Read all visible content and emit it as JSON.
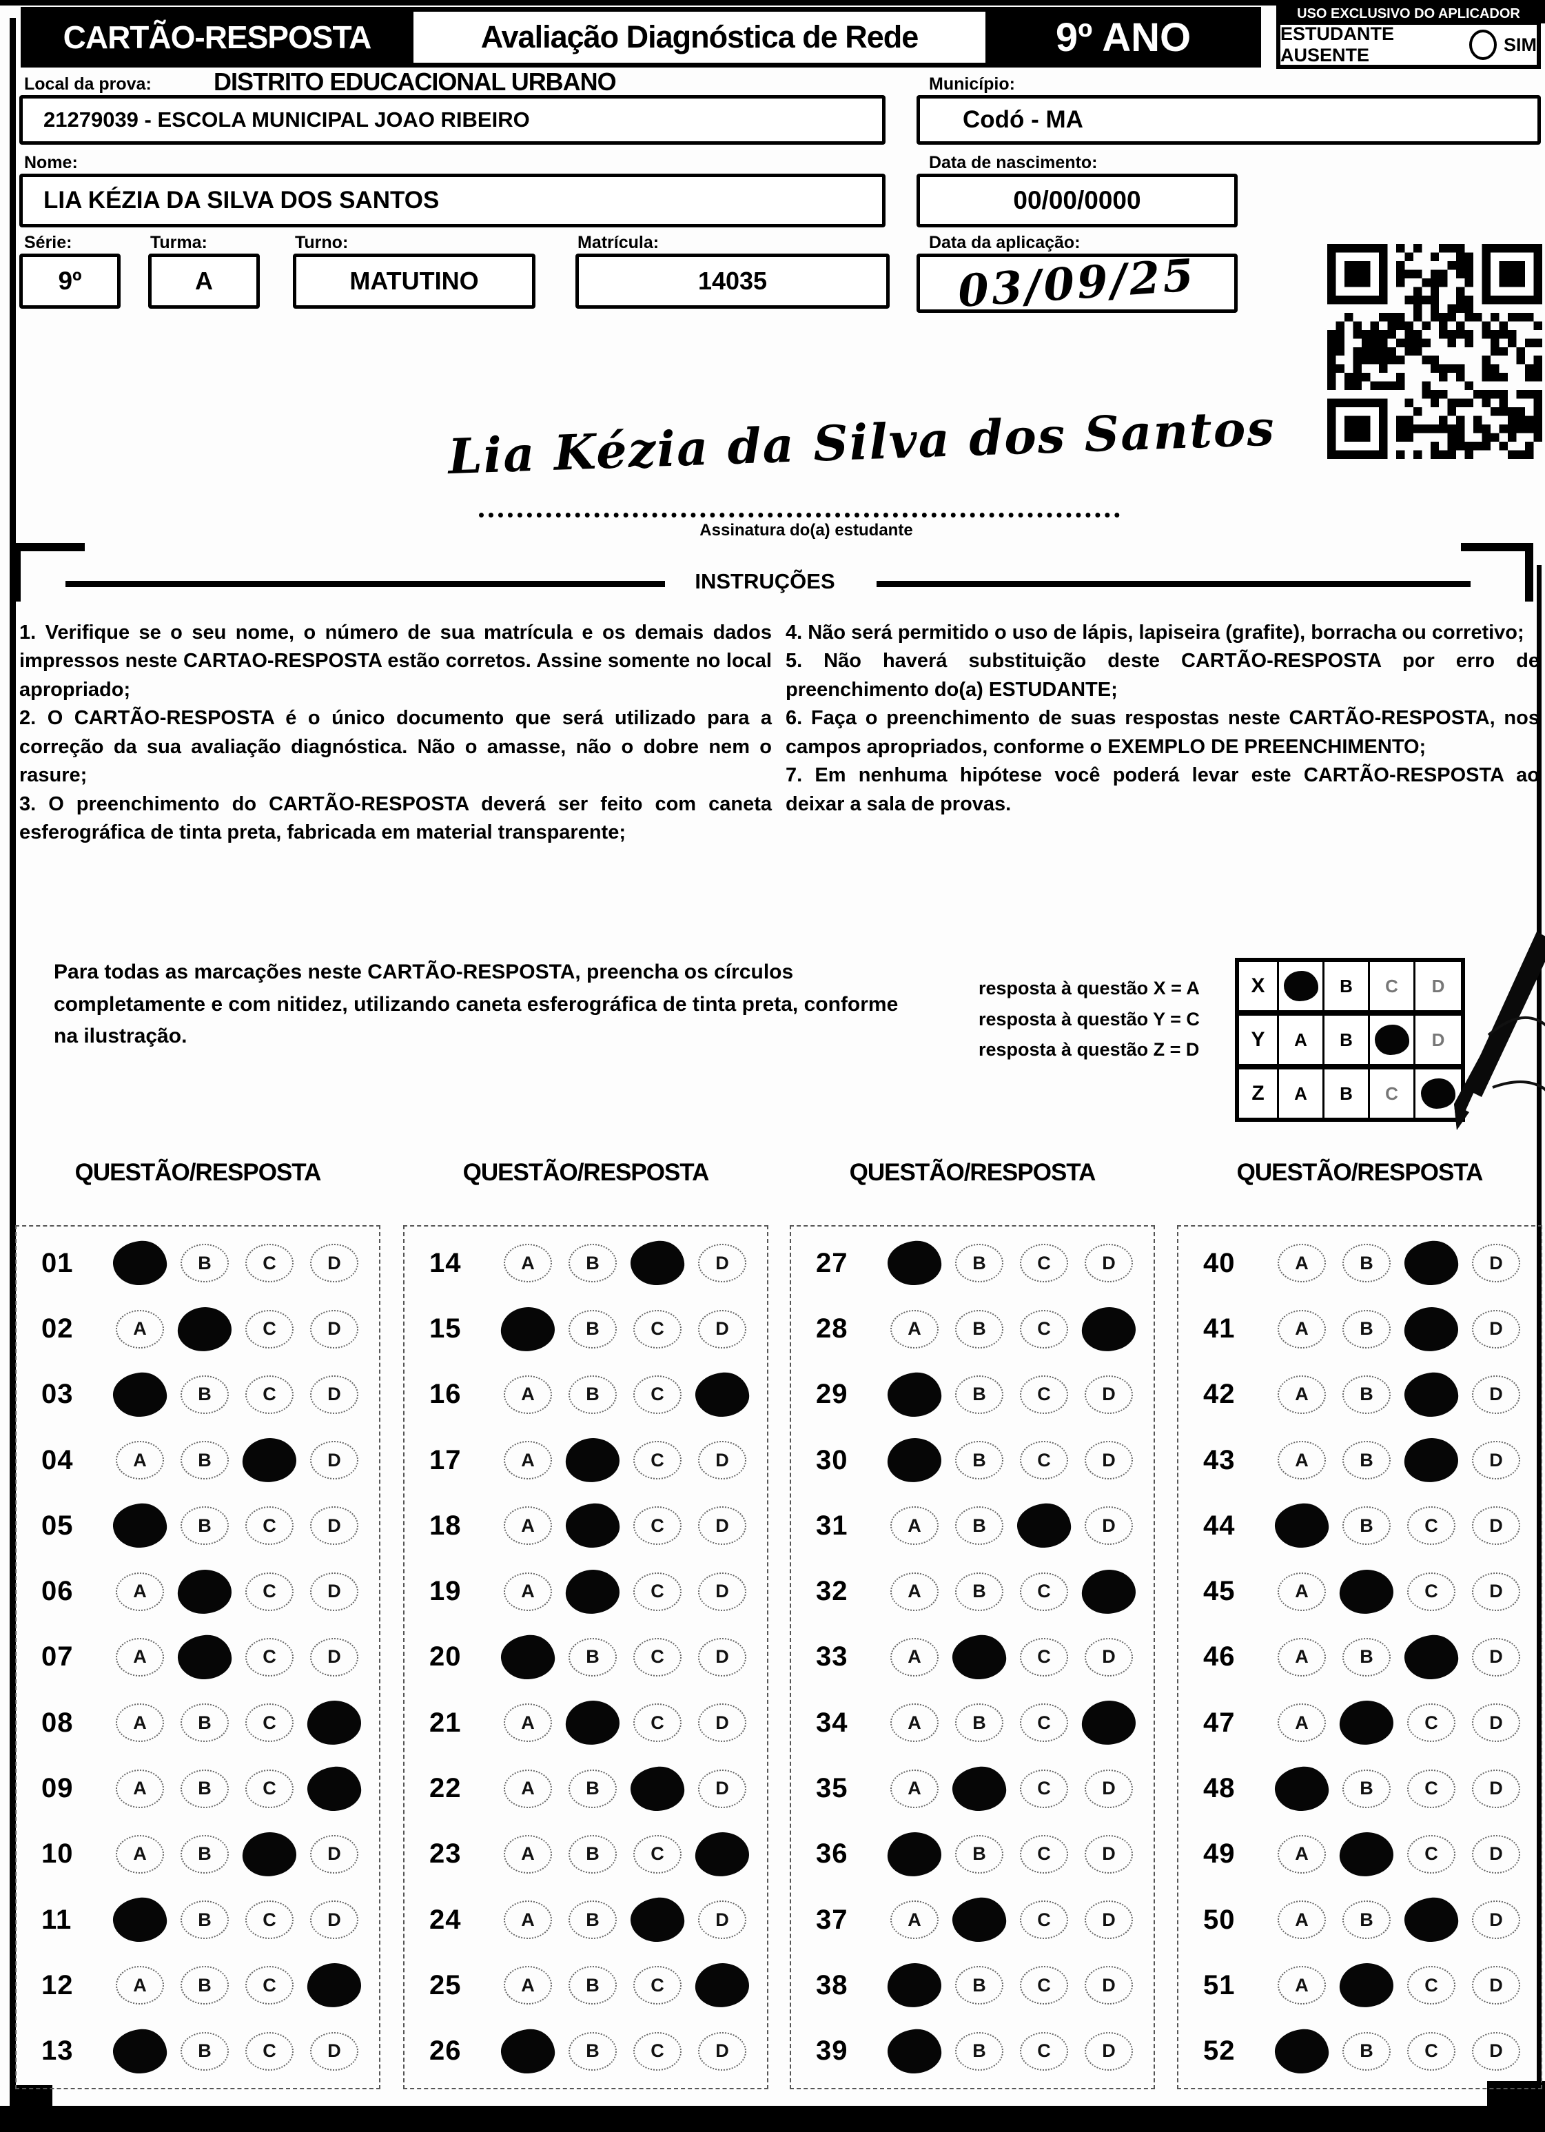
{
  "header": {
    "card_title": "CARTÃO-RESPOSTA",
    "exam_title": "Avaliação Diagnóstica de Rede",
    "grade": "9º ANO",
    "applicator_box_title": "USO EXCLUSIVO DO APLICADOR",
    "absent_label": "ESTUDANTE AUSENTE",
    "absent_option": "SIM"
  },
  "form": {
    "local_label": "Local da prova:",
    "local_value": "DISTRITO EDUCACIONAL URBANO",
    "school_value": "21279039 - ESCOLA MUNICIPAL JOAO RIBEIRO",
    "municipio_label": "Município:",
    "municipio_value": "Codó - MA",
    "nome_label": "Nome:",
    "nome_value": "LIA KÉZIA DA SILVA DOS SANTOS",
    "nascimento_label": "Data de nascimento:",
    "nascimento_value": "00/00/0000",
    "serie_label": "Série:",
    "serie_value": "9º",
    "turma_label": "Turma:",
    "turma_value": "A",
    "turno_label": "Turno:",
    "turno_value": "MATUTINO",
    "matricula_label": "Matrícula:",
    "matricula_value": "14035",
    "aplicacao_label": "Data da aplicação:",
    "aplicacao_value": "03/09/25",
    "assinatura_value": "Lia Kézia da Silva dos Santos",
    "assinatura_label": "Assinatura do(a) estudante"
  },
  "instructions": {
    "title": "INSTRUÇÕES",
    "left": [
      "1. Verifique se o seu nome, o número de sua matrícula e os demais dados impressos neste CARTAO-RESPOSTA estão corretos. Assine somente no local apropriado;",
      "2. O CARTÃO-RESPOSTA é o único documento que será utilizado para a correção da sua avaliação diagnóstica. Não o amasse, não o dobre nem o rasure;",
      "3. O preenchimento do CARTÃO-RESPOSTA deverá ser feito com caneta esferográfica de tinta preta, fabricada em material transparente;"
    ],
    "right": [
      "4. Não será permitido o uso de lápis, lapiseira (grafite), borracha ou corretivo;",
      "5. Não haverá substituição deste CARTÃO-RESPOSTA por erro de preenchimento do(a) ESTUDANTE;",
      "6. Faça o preenchimento de suas respostas neste CARTÃO-RESPOSTA, nos campos apropriados, conforme o EXEMPLO DE PREENCHIMENTO;",
      "7. Em nenhuma hipótese você poderá levar este CARTÃO-RESPOSTA ao deixar a sala de provas."
    ]
  },
  "fill_note": "Para todas as marcações neste CARTÃO-RESPOSTA, preencha os círculos completamente e com nitidez, utilizando caneta esferográfica de tinta preta, conforme na ilustração.",
  "example": {
    "captions": [
      "resposta à questão X = A",
      "resposta à questão Y = C",
      "resposta à questão Z = D"
    ],
    "options": [
      "A",
      "B",
      "C",
      "D"
    ],
    "rows": [
      {
        "label": "X",
        "answer": "A"
      },
      {
        "label": "Y",
        "answer": "C"
      },
      {
        "label": "Z",
        "answer": "D"
      }
    ]
  },
  "answers": {
    "column_header": "QUESTÃO/RESPOSTA",
    "options": [
      "A",
      "B",
      "C",
      "D"
    ],
    "columns": [
      [
        {
          "q": "01",
          "a": "A"
        },
        {
          "q": "02",
          "a": "B"
        },
        {
          "q": "03",
          "a": "A"
        },
        {
          "q": "04",
          "a": "C"
        },
        {
          "q": "05",
          "a": "A"
        },
        {
          "q": "06",
          "a": "B"
        },
        {
          "q": "07",
          "a": "B"
        },
        {
          "q": "08",
          "a": "D"
        },
        {
          "q": "09",
          "a": "D"
        },
        {
          "q": "10",
          "a": "C"
        },
        {
          "q": "11",
          "a": "A"
        },
        {
          "q": "12",
          "a": "D"
        },
        {
          "q": "13",
          "a": "A"
        }
      ],
      [
        {
          "q": "14",
          "a": "C"
        },
        {
          "q": "15",
          "a": "A"
        },
        {
          "q": "16",
          "a": "D"
        },
        {
          "q": "17",
          "a": "B"
        },
        {
          "q": "18",
          "a": "B"
        },
        {
          "q": "19",
          "a": "B"
        },
        {
          "q": "20",
          "a": "A"
        },
        {
          "q": "21",
          "a": "B"
        },
        {
          "q": "22",
          "a": "C"
        },
        {
          "q": "23",
          "a": "D"
        },
        {
          "q": "24",
          "a": "C"
        },
        {
          "q": "25",
          "a": "D"
        },
        {
          "q": "26",
          "a": "A"
        }
      ],
      [
        {
          "q": "27",
          "a": "A"
        },
        {
          "q": "28",
          "a": "D"
        },
        {
          "q": "29",
          "a": "A"
        },
        {
          "q": "30",
          "a": "A"
        },
        {
          "q": "31",
          "a": "C"
        },
        {
          "q": "32",
          "a": "D"
        },
        {
          "q": "33",
          "a": "B"
        },
        {
          "q": "34",
          "a": "D"
        },
        {
          "q": "35",
          "a": "B"
        },
        {
          "q": "36",
          "a": "A"
        },
        {
          "q": "37",
          "a": "B"
        },
        {
          "q": "38",
          "a": "A"
        },
        {
          "q": "39",
          "a": "A"
        }
      ],
      [
        {
          "q": "40",
          "a": "C"
        },
        {
          "q": "41",
          "a": "C"
        },
        {
          "q": "42",
          "a": "C"
        },
        {
          "q": "43",
          "a": "C"
        },
        {
          "q": "44",
          "a": "A"
        },
        {
          "q": "45",
          "a": "B"
        },
        {
          "q": "46",
          "a": "C"
        },
        {
          "q": "47",
          "a": "B"
        },
        {
          "q": "48",
          "a": "A"
        },
        {
          "q": "49",
          "a": "B"
        },
        {
          "q": "50",
          "a": "C"
        },
        {
          "q": "51",
          "a": "B"
        },
        {
          "q": "52",
          "a": "A"
        }
      ]
    ]
  },
  "colors": {
    "ink": "#000000",
    "paper": "#fdfdfd"
  }
}
